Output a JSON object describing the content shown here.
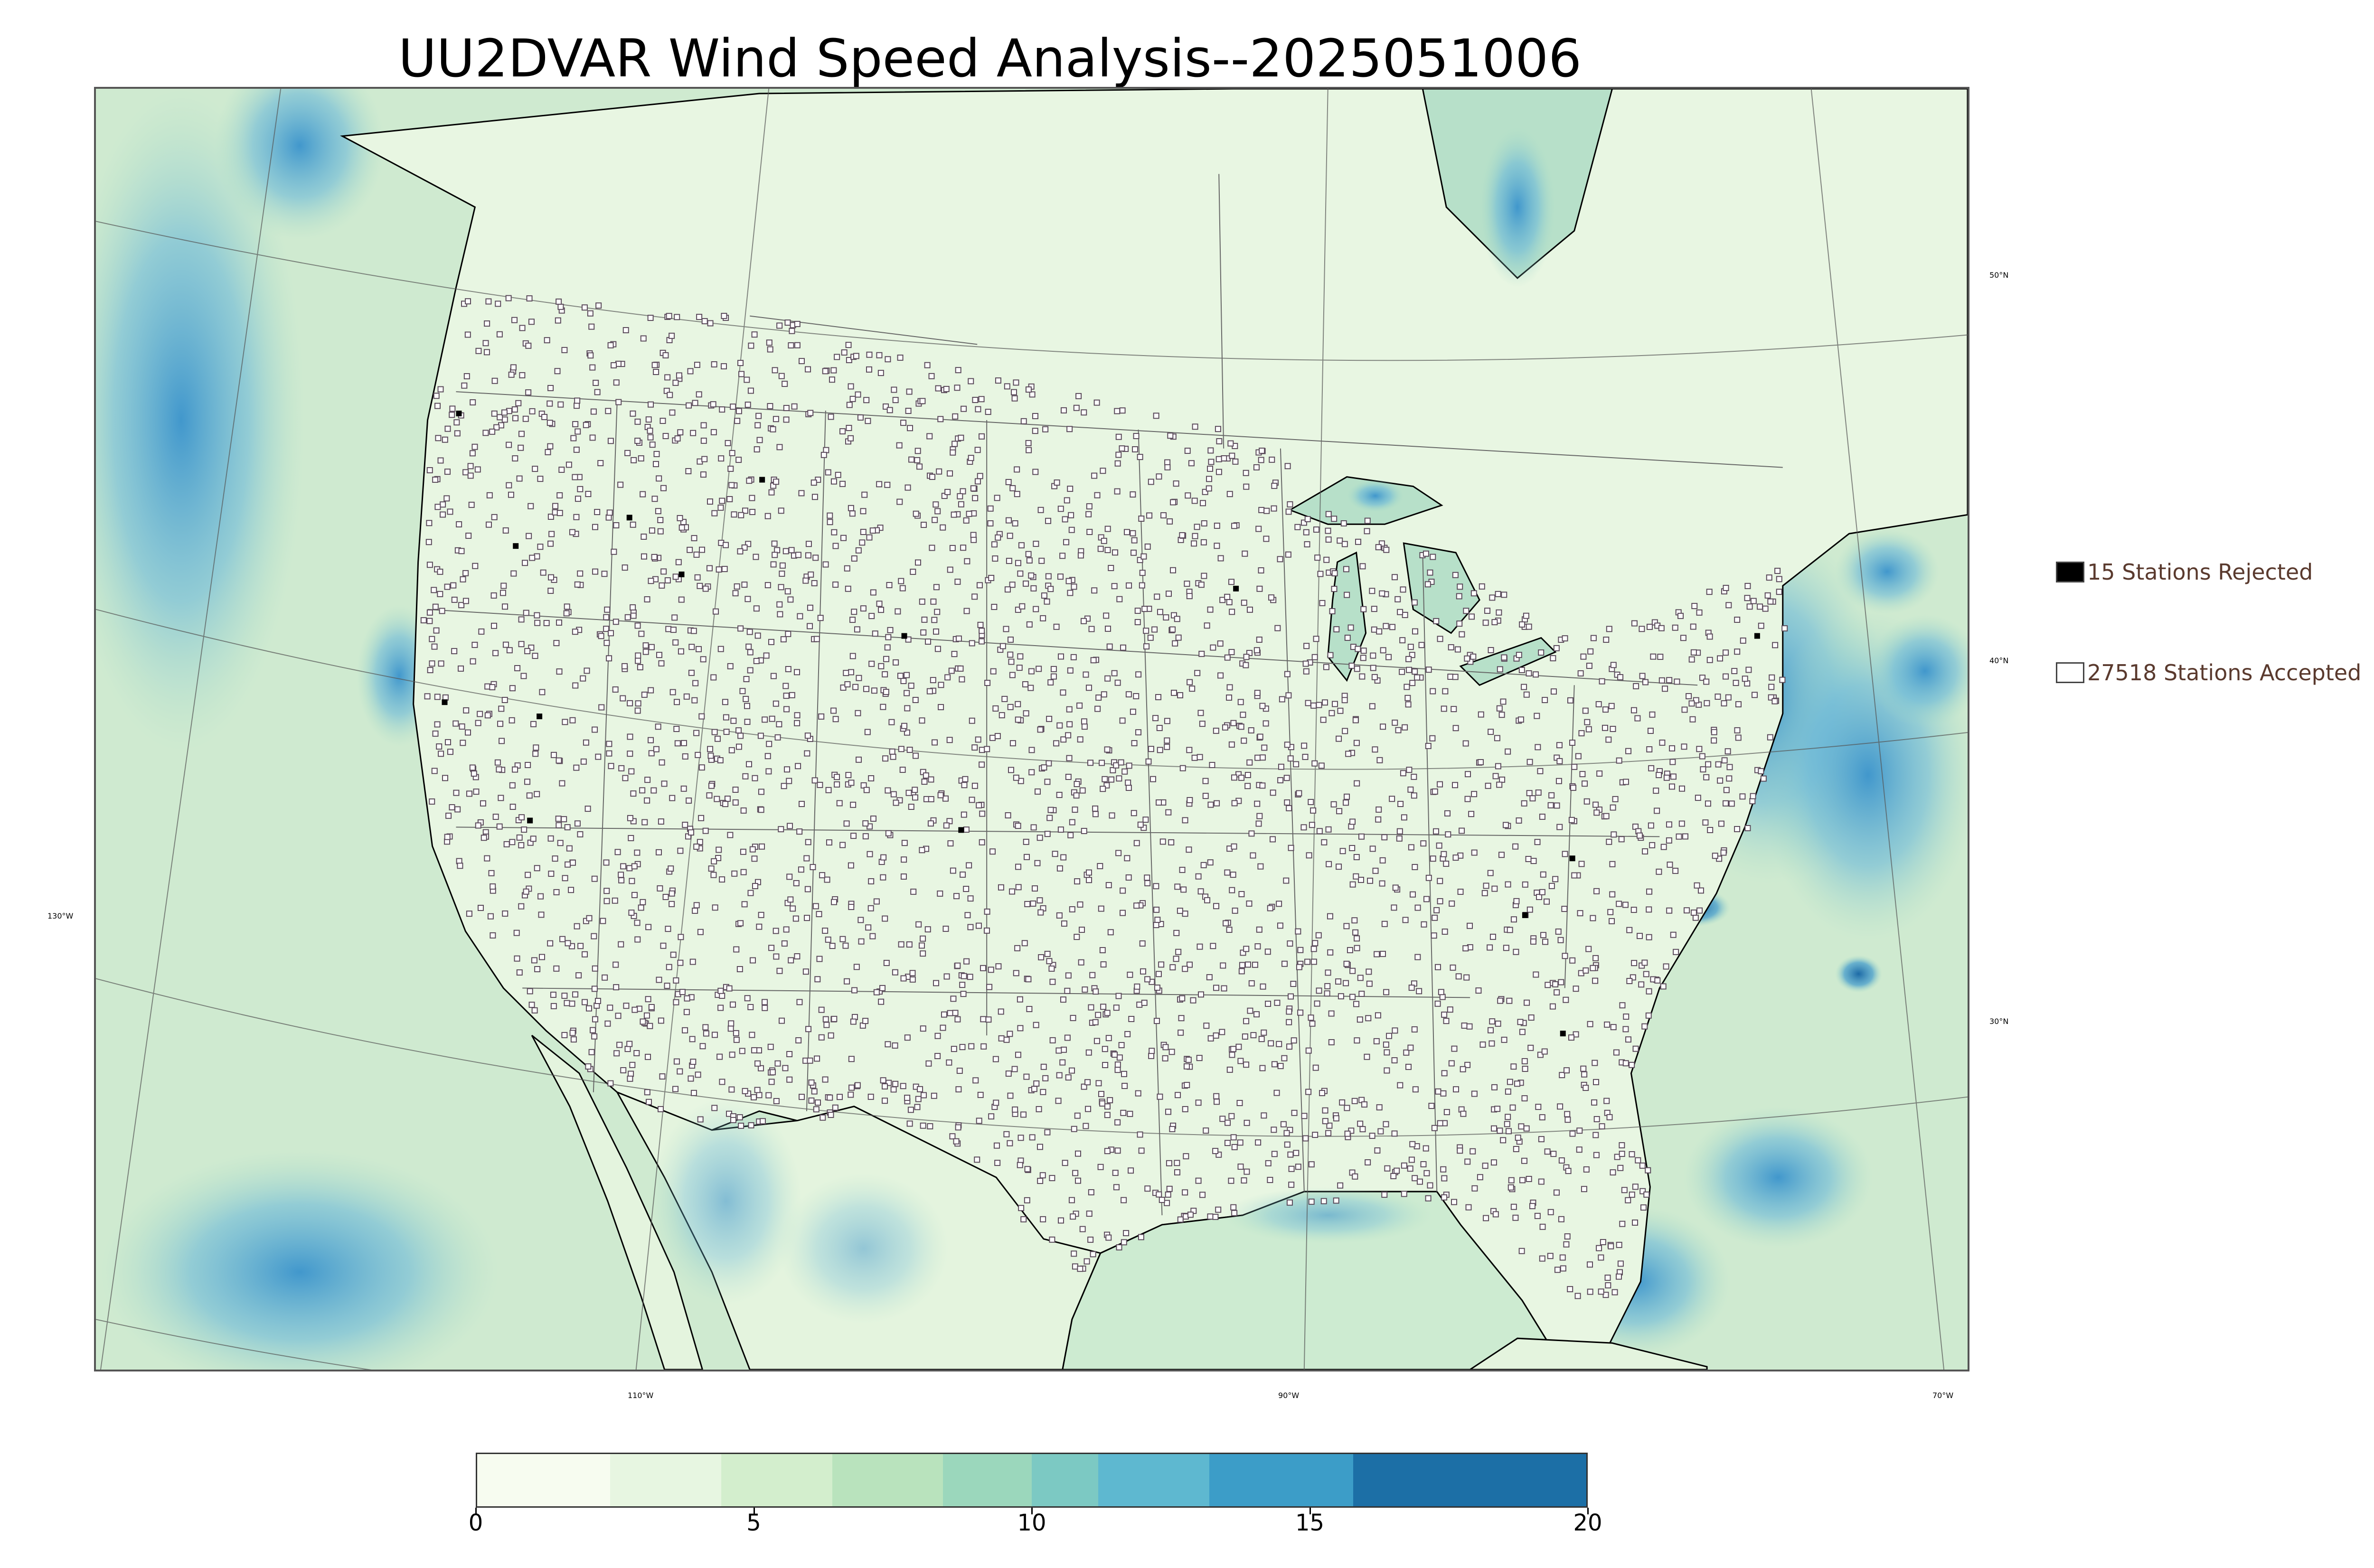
{
  "title": "UU2DVAR Wind Speed Analysis--2025051006",
  "legend": {
    "rejected": "15 Stations Rejected",
    "accepted": "27518 Stations Accepted",
    "rejected_color": "#000000",
    "accepted_color": "#ffffff"
  },
  "graticule": {
    "latitudes": [
      "50°N",
      "40°N",
      "30°N"
    ],
    "longitudes": [
      "130°W",
      "110°W",
      "90°W",
      "70°W"
    ]
  },
  "colorbar": {
    "ticks": [
      "0",
      "5",
      "10",
      "15",
      "20"
    ],
    "range": [
      0,
      20
    ],
    "colors": [
      "#f7fcf0",
      "#e7f6e1",
      "#d3eecd",
      "#b9e3bd",
      "#9bd7bc",
      "#7cc9c3",
      "#5eb8d0",
      "#3c9dc8",
      "#1c6fa6"
    ]
  },
  "colors": {
    "land_base": "#e3f3dd",
    "ocean_base": "#cfecd0",
    "wind_high": "#4aa2d3",
    "wind_max": "#1d6aa6",
    "coastline": "#000000",
    "border": "#666666"
  }
}
